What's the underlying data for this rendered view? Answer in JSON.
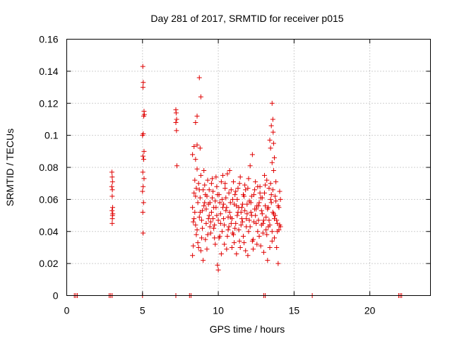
{
  "chart_data": {
    "type": "scatter",
    "title": "Day 281 of 2017, SRMTID for receiver p015",
    "xlabel": "GPS time / hours",
    "ylabel": "SRMTID / TECUs",
    "xlim": [
      0,
      24
    ],
    "ylim": [
      0,
      0.16
    ],
    "xticks": [
      0,
      5,
      10,
      15,
      20
    ],
    "xtick_labels": [
      "0",
      "5",
      "10",
      "15",
      "20"
    ],
    "yticks": [
      0,
      0.02,
      0.04,
      0.06,
      0.08,
      0.1,
      0.12,
      0.14,
      0.16
    ],
    "ytick_labels": [
      "0",
      "0.02",
      "0.04",
      "0.06",
      "0.08",
      "0.1",
      "0.12",
      "0.14",
      "0.16"
    ],
    "grid": true,
    "marker": "+",
    "color": "#e00000",
    "series": [
      {
        "name": "SRMTID",
        "points": [
          [
            0.5,
            0
          ],
          [
            0.6,
            0
          ],
          [
            0.7,
            0
          ],
          [
            2.8,
            0
          ],
          [
            2.9,
            0
          ],
          [
            3.0,
            0
          ],
          [
            5.0,
            0
          ],
          [
            7.2,
            0
          ],
          [
            8.1,
            0
          ],
          [
            8.2,
            0
          ],
          [
            13.0,
            0
          ],
          [
            13.1,
            0
          ],
          [
            16.2,
            0
          ],
          [
            21.9,
            0
          ],
          [
            22.0,
            0
          ],
          [
            22.1,
            0
          ],
          [
            2.98,
            0.077
          ],
          [
            3.0,
            0.074
          ],
          [
            3.02,
            0.071
          ],
          [
            2.97,
            0.068
          ],
          [
            3.01,
            0.066
          ],
          [
            3.0,
            0.062
          ],
          [
            3.03,
            0.055
          ],
          [
            2.99,
            0.053
          ],
          [
            3.02,
            0.05
          ],
          [
            3.01,
            0.048
          ],
          [
            3.0,
            0.045
          ],
          [
            3.04,
            0.051
          ],
          [
            5.02,
            0.143
          ],
          [
            5.05,
            0.133
          ],
          [
            5.03,
            0.13
          ],
          [
            5.1,
            0.115
          ],
          [
            5.12,
            0.113
          ],
          [
            5.08,
            0.112
          ],
          [
            5.0,
            0.1
          ],
          [
            5.05,
            0.101
          ],
          [
            5.1,
            0.09
          ],
          [
            5.03,
            0.087
          ],
          [
            5.08,
            0.085
          ],
          [
            5.02,
            0.077
          ],
          [
            5.1,
            0.073
          ],
          [
            5.04,
            0.068
          ],
          [
            5.0,
            0.065
          ],
          [
            5.07,
            0.058
          ],
          [
            5.02,
            0.052
          ],
          [
            5.04,
            0.039
          ],
          [
            7.2,
            0.116
          ],
          [
            7.22,
            0.114
          ],
          [
            7.25,
            0.11
          ],
          [
            7.2,
            0.108
          ],
          [
            7.24,
            0.103
          ],
          [
            7.27,
            0.081
          ],
          [
            8.75,
            0.136
          ],
          [
            8.85,
            0.124
          ],
          [
            8.6,
            0.112
          ],
          [
            8.5,
            0.108
          ],
          [
            8.4,
            0.093
          ],
          [
            8.6,
            0.094
          ],
          [
            8.8,
            0.092
          ],
          [
            8.3,
            0.088
          ],
          [
            8.5,
            0.085
          ],
          [
            13.55,
            0.12
          ],
          [
            13.6,
            0.11
          ],
          [
            13.5,
            0.106
          ],
          [
            13.62,
            0.102
          ],
          [
            13.4,
            0.097
          ],
          [
            13.65,
            0.095
          ],
          [
            13.45,
            0.092
          ],
          [
            13.7,
            0.086
          ],
          [
            13.55,
            0.083
          ],
          [
            8.3,
            0.055
          ],
          [
            8.4,
            0.048
          ],
          [
            8.5,
            0.062
          ],
          [
            8.6,
            0.041
          ],
          [
            8.7,
            0.07
          ],
          [
            8.8,
            0.052
          ],
          [
            8.9,
            0.036
          ],
          [
            9.0,
            0.066
          ],
          [
            9.1,
            0.058
          ],
          [
            9.2,
            0.045
          ],
          [
            9.3,
            0.072
          ],
          [
            9.4,
            0.05
          ],
          [
            9.5,
            0.039
          ],
          [
            9.6,
            0.061
          ],
          [
            9.7,
            0.055
          ],
          [
            9.8,
            0.032
          ],
          [
            9.9,
            0.068
          ],
          [
            10.0,
            0.047
          ],
          [
            10.1,
            0.058
          ],
          [
            10.2,
            0.026
          ],
          [
            10.3,
            0.075
          ],
          [
            10.4,
            0.044
          ],
          [
            10.5,
            0.053
          ],
          [
            10.6,
            0.037
          ],
          [
            10.7,
            0.064
          ],
          [
            10.8,
            0.049
          ],
          [
            10.9,
            0.03
          ],
          [
            11.0,
            0.071
          ],
          [
            11.1,
            0.042
          ],
          [
            11.2,
            0.056
          ],
          [
            11.3,
            0.067
          ],
          [
            11.4,
            0.034
          ],
          [
            11.5,
            0.052
          ],
          [
            11.6,
            0.046
          ],
          [
            11.7,
            0.062
          ],
          [
            11.8,
            0.028
          ],
          [
            11.9,
            0.057
          ],
          [
            12.0,
            0.073
          ],
          [
            12.1,
            0.043
          ],
          [
            12.2,
            0.05
          ],
          [
            12.3,
            0.035
          ],
          [
            12.4,
            0.066
          ],
          [
            12.5,
            0.054
          ],
          [
            12.6,
            0.04
          ],
          [
            12.7,
            0.058
          ],
          [
            12.8,
            0.031
          ],
          [
            12.9,
            0.061
          ],
          [
            13.0,
            0.047
          ],
          [
            13.1,
            0.069
          ],
          [
            13.2,
            0.038
          ],
          [
            13.3,
            0.055
          ],
          [
            13.4,
            0.044
          ],
          [
            13.5,
            0.063
          ],
          [
            13.6,
            0.052
          ],
          [
            13.7,
            0.036
          ],
          [
            13.8,
            0.059
          ],
          [
            13.9,
            0.045
          ],
          [
            14.0,
            0.041
          ],
          [
            14.1,
            0.043
          ],
          [
            8.35,
            0.031
          ],
          [
            8.45,
            0.072
          ],
          [
            8.55,
            0.038
          ],
          [
            8.65,
            0.058
          ],
          [
            8.75,
            0.066
          ],
          [
            8.85,
            0.028
          ],
          [
            8.95,
            0.053
          ],
          [
            9.05,
            0.078
          ],
          [
            9.15,
            0.035
          ],
          [
            9.25,
            0.062
          ],
          [
            9.35,
            0.057
          ],
          [
            9.45,
            0.043
          ],
          [
            9.55,
            0.07
          ],
          [
            9.65,
            0.048
          ],
          [
            9.75,
            0.036
          ],
          [
            9.85,
            0.074
          ],
          [
            9.95,
            0.019
          ],
          [
            10.05,
            0.063
          ],
          [
            10.15,
            0.051
          ],
          [
            10.25,
            0.04
          ],
          [
            10.35,
            0.057
          ],
          [
            10.45,
            0.067
          ],
          [
            10.55,
            0.029
          ],
          [
            10.65,
            0.049
          ],
          [
            10.75,
            0.078
          ],
          [
            10.85,
            0.045
          ],
          [
            10.95,
            0.06
          ],
          [
            11.05,
            0.033
          ],
          [
            11.15,
            0.065
          ],
          [
            11.25,
            0.05
          ],
          [
            11.35,
            0.041
          ],
          [
            11.45,
            0.074
          ],
          [
            11.55,
            0.055
          ],
          [
            11.65,
            0.037
          ],
          [
            11.75,
            0.069
          ],
          [
            11.85,
            0.048
          ],
          [
            11.95,
            0.025
          ],
          [
            12.05,
            0.059
          ],
          [
            12.15,
            0.052
          ],
          [
            12.25,
            0.088
          ],
          [
            12.35,
            0.046
          ],
          [
            12.45,
            0.071
          ],
          [
            12.55,
            0.032
          ],
          [
            12.65,
            0.056
          ],
          [
            12.75,
            0.064
          ],
          [
            12.85,
            0.044
          ],
          [
            12.95,
            0.039
          ],
          [
            13.05,
            0.075
          ],
          [
            13.15,
            0.049
          ],
          [
            13.25,
            0.022
          ],
          [
            13.35,
            0.067
          ],
          [
            13.45,
            0.06
          ],
          [
            13.55,
            0.034
          ],
          [
            13.65,
            0.078
          ],
          [
            13.75,
            0.05
          ],
          [
            13.85,
            0.03
          ],
          [
            13.95,
            0.02
          ],
          [
            14.05,
            0.065
          ],
          [
            8.3,
            0.025
          ],
          [
            8.4,
            0.064
          ],
          [
            8.5,
            0.044
          ],
          [
            8.6,
            0.079
          ],
          [
            8.7,
            0.03
          ],
          [
            8.8,
            0.061
          ],
          [
            8.9,
            0.047
          ],
          [
            9.0,
            0.022
          ],
          [
            9.1,
            0.069
          ],
          [
            9.2,
            0.054
          ],
          [
            9.3,
            0.038
          ],
          [
            9.4,
            0.066
          ],
          [
            9.5,
            0.046
          ],
          [
            9.6,
            0.073
          ],
          [
            9.7,
            0.042
          ],
          [
            9.8,
            0.059
          ],
          [
            9.9,
            0.05
          ],
          [
            10.0,
            0.016
          ],
          [
            10.1,
            0.037
          ],
          [
            10.2,
            0.071
          ],
          [
            10.3,
            0.055
          ],
          [
            10.4,
            0.032
          ],
          [
            10.5,
            0.061
          ],
          [
            10.6,
            0.076
          ],
          [
            10.7,
            0.043
          ],
          [
            10.8,
            0.058
          ],
          [
            10.9,
            0.048
          ],
          [
            11.0,
            0.038
          ],
          [
            11.1,
            0.063
          ],
          [
            11.2,
            0.026
          ],
          [
            11.3,
            0.052
          ],
          [
            11.4,
            0.07
          ],
          [
            11.5,
            0.044
          ],
          [
            11.6,
            0.057
          ],
          [
            11.7,
            0.033
          ],
          [
            11.8,
            0.066
          ],
          [
            11.9,
            0.051
          ],
          [
            12.0,
            0.04
          ],
          [
            12.1,
            0.081
          ],
          [
            12.2,
            0.062
          ],
          [
            12.3,
            0.029
          ],
          [
            12.4,
            0.054
          ],
          [
            12.5,
            0.045
          ],
          [
            12.6,
            0.068
          ],
          [
            12.7,
            0.037
          ],
          [
            12.8,
            0.061
          ],
          [
            12.9,
            0.051
          ],
          [
            13.0,
            0.027
          ],
          [
            13.1,
            0.056
          ],
          [
            13.2,
            0.072
          ],
          [
            13.3,
            0.043
          ],
          [
            13.4,
            0.03
          ],
          [
            13.5,
            0.058
          ],
          [
            13.6,
            0.066
          ],
          [
            13.7,
            0.048
          ],
          [
            13.8,
            0.071
          ],
          [
            13.9,
            0.04
          ],
          [
            14.0,
            0.055
          ],
          [
            14.1,
            0.06
          ],
          [
            8.35,
            0.046
          ],
          [
            8.45,
            0.052
          ],
          [
            8.55,
            0.067
          ],
          [
            8.65,
            0.033
          ],
          [
            8.75,
            0.049
          ],
          [
            8.85,
            0.075
          ],
          [
            8.95,
            0.042
          ],
          [
            9.05,
            0.056
          ],
          [
            9.15,
            0.063
          ],
          [
            9.25,
            0.029
          ],
          [
            9.35,
            0.048
          ],
          [
            9.45,
            0.058
          ],
          [
            9.55,
            0.052
          ],
          [
            9.65,
            0.065
          ],
          [
            9.75,
            0.044
          ],
          [
            9.85,
            0.055
          ],
          [
            9.95,
            0.063
          ],
          [
            10.05,
            0.036
          ],
          [
            10.15,
            0.045
          ],
          [
            10.25,
            0.06
          ],
          [
            10.35,
            0.048
          ],
          [
            10.45,
            0.07
          ],
          [
            10.55,
            0.055
          ],
          [
            10.65,
            0.041
          ],
          [
            10.75,
            0.052
          ],
          [
            10.85,
            0.066
          ],
          [
            10.95,
            0.039
          ],
          [
            11.05,
            0.057
          ],
          [
            11.15,
            0.045
          ],
          [
            11.25,
            0.06
          ],
          [
            11.35,
            0.055
          ],
          [
            11.45,
            0.03
          ],
          [
            11.55,
            0.048
          ],
          [
            11.65,
            0.063
          ],
          [
            11.75,
            0.053
          ],
          [
            11.85,
            0.043
          ],
          [
            11.95,
            0.067
          ],
          [
            12.05,
            0.047
          ],
          [
            12.15,
            0.058
          ],
          [
            12.25,
            0.034
          ],
          [
            12.35,
            0.063
          ],
          [
            12.45,
            0.05
          ],
          [
            12.55,
            0.056
          ],
          [
            12.65,
            0.047
          ],
          [
            12.75,
            0.068
          ],
          [
            12.85,
            0.053
          ],
          [
            12.95,
            0.045
          ],
          [
            13.05,
            0.064
          ],
          [
            13.15,
            0.041
          ],
          [
            13.25,
            0.054
          ],
          [
            13.35,
            0.047
          ],
          [
            13.45,
            0.07
          ],
          [
            13.55,
            0.04
          ],
          [
            13.65,
            0.051
          ],
          [
            13.75,
            0.062
          ],
          [
            13.85,
            0.047
          ],
          [
            13.95,
            0.056
          ],
          [
            14.05,
            0.044
          ]
        ]
      }
    ]
  }
}
